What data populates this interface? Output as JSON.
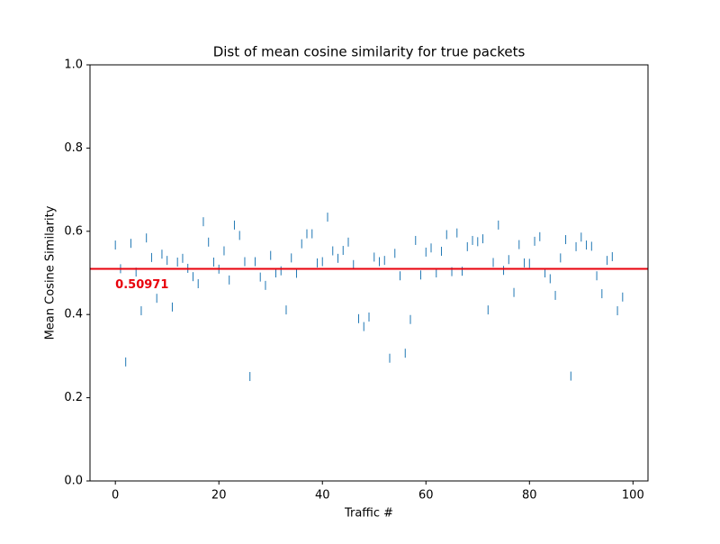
{
  "chart_data": {
    "type": "scatter",
    "title": "Dist of mean cosine similarity for true packets",
    "xlabel": "Traffic #",
    "ylabel": "Mean Cosine Similarity",
    "x": [
      0,
      1,
      2,
      3,
      4,
      5,
      6,
      7,
      8,
      9,
      10,
      11,
      12,
      13,
      14,
      15,
      16,
      17,
      18,
      19,
      20,
      21,
      22,
      23,
      24,
      25,
      26,
      27,
      28,
      29,
      30,
      31,
      32,
      33,
      34,
      35,
      36,
      37,
      38,
      39,
      40,
      41,
      42,
      43,
      44,
      45,
      46,
      47,
      48,
      49,
      50,
      51,
      52,
      53,
      54,
      55,
      56,
      57,
      58,
      59,
      60,
      61,
      62,
      63,
      64,
      65,
      66,
      67,
      68,
      69,
      70,
      71,
      72,
      73,
      74,
      75,
      76,
      77,
      78,
      79,
      80,
      81,
      82,
      83,
      84,
      85,
      86,
      87,
      88,
      89,
      90,
      91,
      92,
      93,
      94,
      95,
      96,
      97,
      98
    ],
    "values": [
      0.567,
      0.51,
      0.286,
      0.571,
      0.502,
      0.409,
      0.584,
      0.537,
      0.439,
      0.545,
      0.53,
      0.418,
      0.526,
      0.535,
      0.511,
      0.491,
      0.474,
      0.623,
      0.574,
      0.526,
      0.509,
      0.553,
      0.483,
      0.615,
      0.59,
      0.527,
      0.251,
      0.527,
      0.49,
      0.47,
      0.542,
      0.5,
      0.505,
      0.411,
      0.536,
      0.499,
      0.57,
      0.594,
      0.594,
      0.524,
      0.527,
      0.634,
      0.553,
      0.535,
      0.554,
      0.574,
      0.52,
      0.39,
      0.371,
      0.394,
      0.538,
      0.527,
      0.53,
      0.295,
      0.547,
      0.493,
      0.307,
      0.388,
      0.578,
      0.495,
      0.55,
      0.56,
      0.5,
      0.552,
      0.592,
      0.503,
      0.596,
      0.504,
      0.563,
      0.578,
      0.575,
      0.582,
      0.411,
      0.525,
      0.615,
      0.506,
      0.532,
      0.453,
      0.568,
      0.524,
      0.523,
      0.576,
      0.587,
      0.5,
      0.486,
      0.446,
      0.536,
      0.58,
      0.252,
      0.563,
      0.586,
      0.567,
      0.564,
      0.493,
      0.45,
      0.53,
      0.539,
      0.409,
      0.442
    ],
    "color": "#1f77b4",
    "mean_line": 0.50971,
    "mean_color": "#e8000b",
    "xlim": [
      -4.9,
      102.9
    ],
    "xticks": [
      0,
      20,
      40,
      60,
      80,
      100
    ],
    "ylim": [
      0,
      1
    ],
    "yticks": [
      {
        "value": 0,
        "label": "0.0"
      },
      0.2,
      0.4,
      0.6,
      0.8,
      {
        "value": 1,
        "label": "1.0"
      }
    ]
  }
}
